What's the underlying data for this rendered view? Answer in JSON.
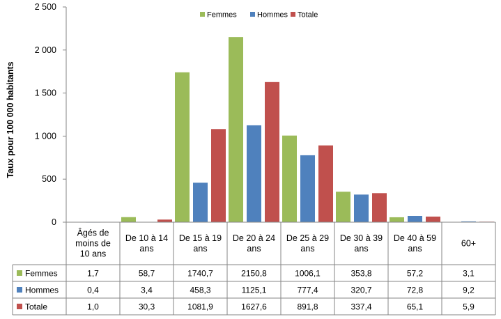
{
  "chart_data": {
    "type": "bar",
    "ylabel": "Taux pour 100 000 habitants",
    "ylim": [
      0,
      2500
    ],
    "yticks": [
      "0",
      "500",
      "1 000",
      "1 500",
      "2 000",
      "2 500"
    ],
    "grid": false,
    "legend_position": "top-center",
    "categories": [
      [
        "Âgés de",
        "moins de",
        "10 ans"
      ],
      [
        "De 10 à 14",
        "ans"
      ],
      [
        "De 15 à 19",
        "ans"
      ],
      [
        "De 20 à 24",
        "ans"
      ],
      [
        "De 25 à 29",
        "ans"
      ],
      [
        "De 30 à 39",
        "ans"
      ],
      [
        "De 40 à 59",
        "ans"
      ],
      [
        "60+"
      ]
    ],
    "series": [
      {
        "name": "Femmes",
        "color": "#9BBB59",
        "values": [
          1.7,
          58.7,
          1740.7,
          2150.8,
          1006.1,
          353.8,
          57.2,
          3.1
        ],
        "labels": [
          "1,7",
          "58,7",
          "1740,7",
          "2150,8",
          "1006,1",
          "353,8",
          "57,2",
          "3,1"
        ]
      },
      {
        "name": "Hommes",
        "color": "#4F81BD",
        "values": [
          0.4,
          3.4,
          458.3,
          1125.1,
          777.4,
          320.7,
          72.8,
          9.2
        ],
        "labels": [
          "0,4",
          "3,4",
          "458,3",
          "1125,1",
          "777,4",
          "320,7",
          "72,8",
          "9,2"
        ]
      },
      {
        "name": "Totale",
        "color": "#C0504D",
        "values": [
          1.0,
          30.3,
          1081.9,
          1627.6,
          891.8,
          337.4,
          65.1,
          5.9
        ],
        "labels": [
          "1,0",
          "30,3",
          "1081,9",
          "1627,6",
          "891,8",
          "337,4",
          "65,1",
          "5,9"
        ]
      }
    ]
  }
}
